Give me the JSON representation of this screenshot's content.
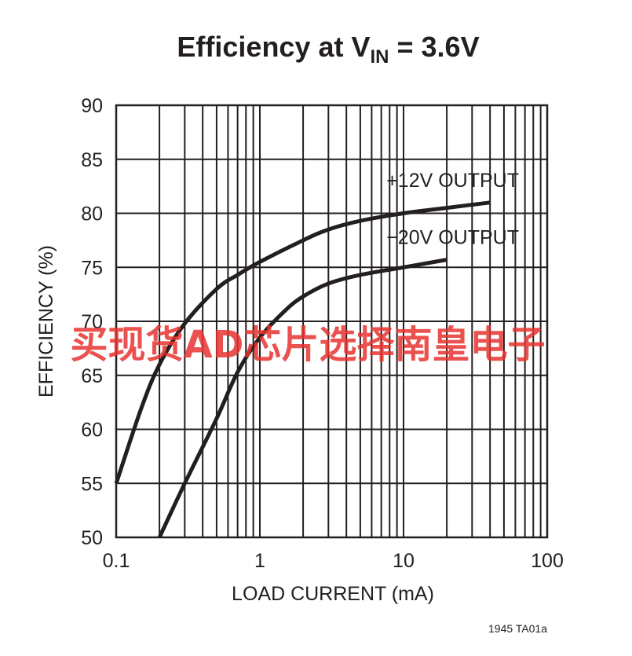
{
  "chart_data": {
    "type": "line",
    "title": {
      "main": "Efficiency at V",
      "sub": "IN",
      "rest": " = 3.6V"
    },
    "xlabel": "LOAD CURRENT (mA)",
    "ylabel": "EFFICIENCY (%)",
    "xscale": "log",
    "xlim": [
      0.1,
      100
    ],
    "ylim": [
      50,
      90
    ],
    "xticks": [
      0.1,
      1,
      10,
      100
    ],
    "xtick_labels": [
      "0.1",
      "1",
      "10",
      "100"
    ],
    "yticks": [
      50,
      55,
      60,
      65,
      70,
      75,
      80,
      85,
      90
    ],
    "ytick_labels": [
      "50",
      "55",
      "60",
      "65",
      "70",
      "75",
      "80",
      "85",
      "90"
    ],
    "grid": true,
    "series": [
      {
        "name": "+12V OUTPUT",
        "x": [
          0.1,
          0.15,
          0.2,
          0.3,
          0.5,
          0.7,
          1,
          2,
          3,
          5,
          10,
          20,
          40
        ],
        "y": [
          55.0,
          62.0,
          66.0,
          69.8,
          73.0,
          74.3,
          75.5,
          77.5,
          78.5,
          79.3,
          80.0,
          80.5,
          81.0
        ]
      },
      {
        "name": "−20V OUTPUT",
        "x": [
          0.2,
          0.3,
          0.5,
          0.7,
          1,
          1.5,
          2,
          3,
          5,
          10,
          20
        ],
        "y": [
          50.0,
          55.0,
          61.0,
          65.3,
          68.5,
          71.0,
          72.3,
          73.5,
          74.3,
          75.0,
          75.7
        ]
      }
    ],
    "figure_id": "1945 TA01a"
  },
  "watermark": "买现货AD芯片选择南皇电子"
}
